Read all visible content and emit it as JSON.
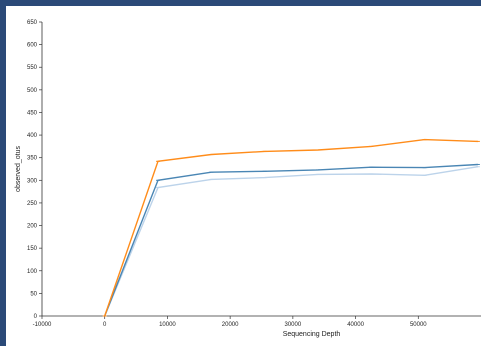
{
  "chart_data": {
    "type": "line",
    "title": "",
    "xlabel": "Sequencing Depth",
    "ylabel": "observed_otus",
    "xlim": [
      -10000,
      60000
    ],
    "ylim": [
      0,
      650
    ],
    "xticks": [
      -10000,
      0,
      10000,
      20000,
      30000,
      40000,
      50000
    ],
    "yticks": [
      0,
      50,
      100,
      150,
      200,
      250,
      300,
      350,
      400,
      450,
      500,
      550,
      600,
      650
    ],
    "grid": false,
    "legend": "none",
    "series": [
      {
        "color": "#ff8c1a",
        "x": [
          0,
          8500,
          17000,
          25500,
          34000,
          42500,
          51000,
          59500
        ],
        "y": [
          0,
          342,
          357,
          364,
          367,
          375,
          390,
          386
        ]
      },
      {
        "color": "#4a86b4",
        "x": [
          0,
          8500,
          17000,
          25500,
          34000,
          42500,
          51000,
          59500
        ],
        "y": [
          0,
          300,
          318,
          320,
          323,
          329,
          328,
          335
        ]
      },
      {
        "color": "#bcd3ea",
        "x": [
          0,
          8500,
          17000,
          25500,
          34000,
          42500,
          51000,
          59500
        ],
        "y": [
          0,
          284,
          302,
          306,
          313,
          314,
          311,
          330
        ]
      }
    ]
  }
}
